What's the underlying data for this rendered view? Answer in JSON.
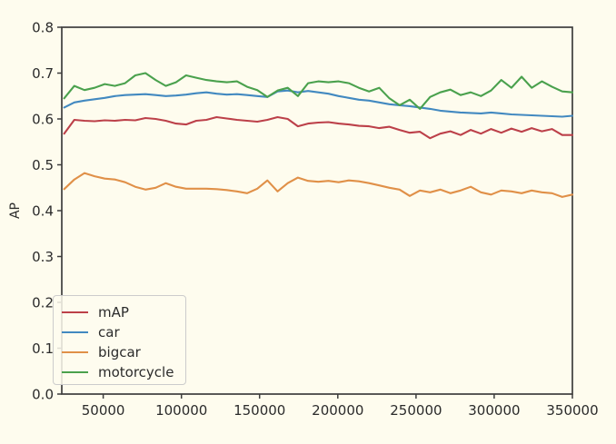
{
  "figure": {
    "background_color": "#fefcee",
    "axis_color": "#3d3d3d",
    "text_color": "#2b2b2b"
  },
  "chart_data": {
    "type": "line",
    "title": "",
    "xlabel": "",
    "ylabel": "AP",
    "xlim": [
      23500,
      350000
    ],
    "ylim": [
      0.0,
      0.8
    ],
    "x_ticks": [
      50000,
      100000,
      150000,
      200000,
      250000,
      300000,
      350000
    ],
    "y_ticks": [
      0.0,
      0.1,
      0.2,
      0.3,
      0.4,
      0.5,
      0.6,
      0.7,
      0.8
    ],
    "y_tick_labels": [
      "0.0",
      "0.1",
      "0.2",
      "0.3",
      "0.4",
      "0.5",
      "0.6",
      "0.7",
      "0.8"
    ],
    "grid": false,
    "legend_position": "lower-left",
    "x": [
      25000,
      31500,
      38000,
      44500,
      51000,
      57500,
      64000,
      70500,
      77000,
      83500,
      90000,
      96500,
      103000,
      109500,
      116000,
      122500,
      129000,
      135500,
      142000,
      148500,
      155000,
      161500,
      168000,
      174500,
      181000,
      187500,
      194000,
      200500,
      207000,
      213500,
      220000,
      226500,
      233000,
      239500,
      246000,
      252500,
      259000,
      265500,
      272000,
      278500,
      285000,
      291500,
      298000,
      304500,
      311000,
      317500,
      324000,
      330500,
      337000,
      343500,
      350000
    ],
    "series": [
      {
        "name": "mAP",
        "color": "#bc4049",
        "values": [
          0.568,
          0.598,
          0.596,
          0.595,
          0.597,
          0.596,
          0.598,
          0.597,
          0.602,
          0.6,
          0.596,
          0.59,
          0.588,
          0.596,
          0.598,
          0.604,
          0.601,
          0.598,
          0.596,
          0.594,
          0.598,
          0.604,
          0.6,
          0.584,
          0.59,
          0.592,
          0.593,
          0.59,
          0.588,
          0.585,
          0.584,
          0.58,
          0.583,
          0.576,
          0.57,
          0.572,
          0.558,
          0.568,
          0.573,
          0.565,
          0.576,
          0.568,
          0.578,
          0.57,
          0.579,
          0.572,
          0.58,
          0.573,
          0.578,
          0.565,
          0.565
        ]
      },
      {
        "name": "car",
        "color": "#4289c0",
        "values": [
          0.625,
          0.636,
          0.64,
          0.643,
          0.646,
          0.65,
          0.652,
          0.653,
          0.654,
          0.652,
          0.65,
          0.651,
          0.653,
          0.656,
          0.658,
          0.655,
          0.653,
          0.654,
          0.652,
          0.65,
          0.648,
          0.66,
          0.662,
          0.658,
          0.661,
          0.658,
          0.655,
          0.65,
          0.646,
          0.642,
          0.64,
          0.636,
          0.632,
          0.63,
          0.628,
          0.625,
          0.622,
          0.618,
          0.616,
          0.614,
          0.613,
          0.612,
          0.614,
          0.612,
          0.61,
          0.609,
          0.608,
          0.607,
          0.606,
          0.605,
          0.607
        ]
      },
      {
        "name": "bigcar",
        "color": "#e09048",
        "values": [
          0.447,
          0.468,
          0.482,
          0.475,
          0.47,
          0.468,
          0.462,
          0.452,
          0.446,
          0.45,
          0.46,
          0.452,
          0.448,
          0.448,
          0.448,
          0.447,
          0.445,
          0.442,
          0.438,
          0.448,
          0.466,
          0.442,
          0.46,
          0.472,
          0.465,
          0.463,
          0.465,
          0.462,
          0.466,
          0.464,
          0.46,
          0.455,
          0.45,
          0.446,
          0.432,
          0.444,
          0.44,
          0.446,
          0.438,
          0.444,
          0.452,
          0.44,
          0.435,
          0.444,
          0.442,
          0.438,
          0.444,
          0.44,
          0.438,
          0.43,
          0.435
        ]
      },
      {
        "name": "motorcycle",
        "color": "#4aa14d",
        "values": [
          0.645,
          0.672,
          0.663,
          0.668,
          0.676,
          0.672,
          0.678,
          0.695,
          0.7,
          0.685,
          0.672,
          0.68,
          0.695,
          0.69,
          0.685,
          0.682,
          0.68,
          0.682,
          0.67,
          0.663,
          0.648,
          0.662,
          0.668,
          0.65,
          0.678,
          0.682,
          0.68,
          0.682,
          0.678,
          0.668,
          0.66,
          0.668,
          0.645,
          0.63,
          0.642,
          0.622,
          0.648,
          0.658,
          0.664,
          0.652,
          0.658,
          0.65,
          0.662,
          0.685,
          0.668,
          0.692,
          0.668,
          0.682,
          0.67,
          0.66,
          0.658
        ]
      }
    ]
  }
}
